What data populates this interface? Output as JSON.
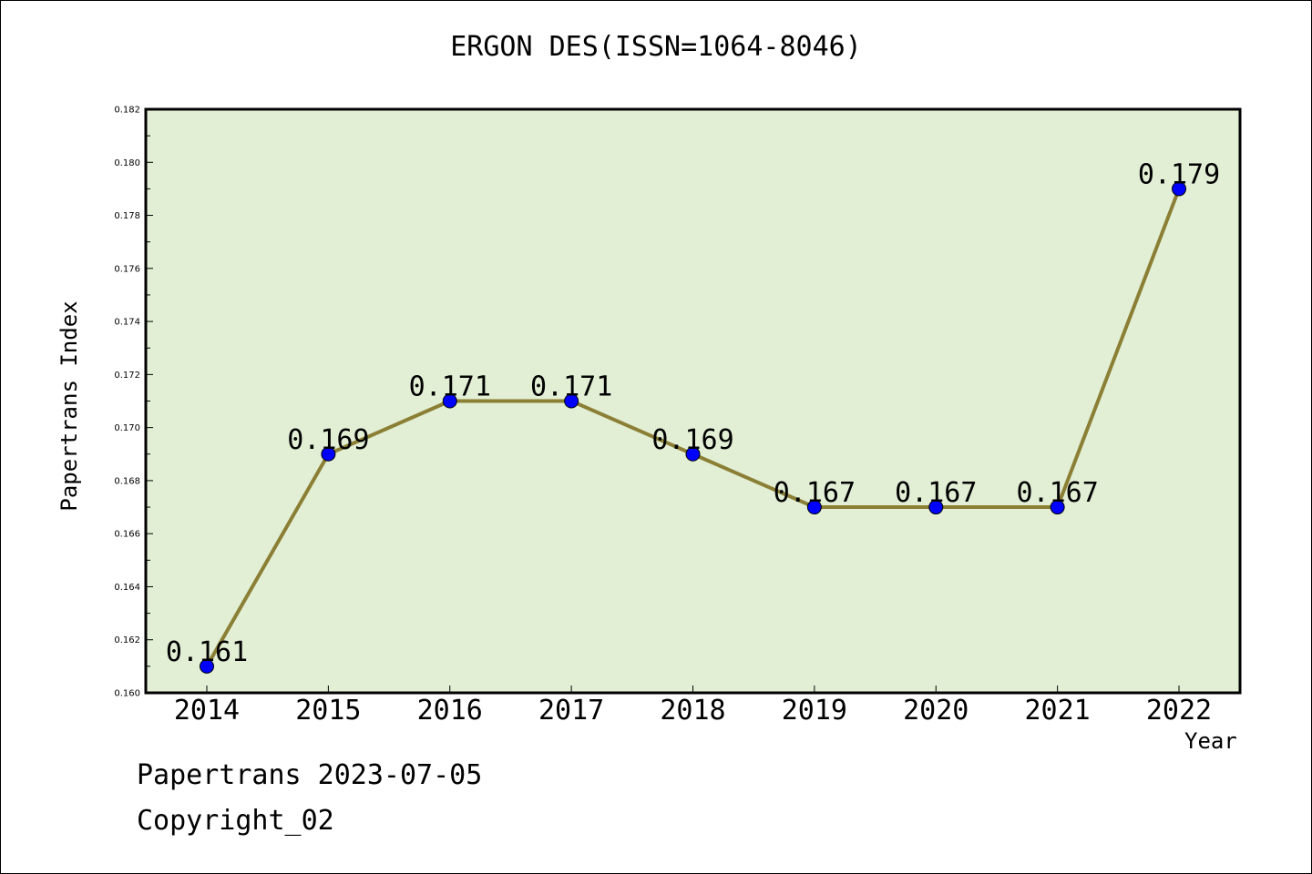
{
  "chart_data": {
    "type": "line",
    "title": "ERGON DES(ISSN=1064-8046)",
    "xlabel": "Year",
    "ylabel": "Papertrans Index",
    "categories": [
      "2014",
      "2015",
      "2016",
      "2017",
      "2018",
      "2019",
      "2020",
      "2021",
      "2022"
    ],
    "values": [
      0.161,
      0.169,
      0.171,
      0.171,
      0.169,
      0.167,
      0.167,
      0.167,
      0.179
    ],
    "data_labels": [
      "0.161",
      "0.169",
      "0.171",
      "0.171",
      "0.169",
      "0.167",
      "0.167",
      "0.167",
      "0.179"
    ],
    "ylim": [
      0.16,
      0.182
    ],
    "yticks": [
      "0.160",
      "0.162",
      "0.164",
      "0.166",
      "0.168",
      "0.170",
      "0.172",
      "0.174",
      "0.176",
      "0.178",
      "0.180",
      "0.182"
    ],
    "grid": false,
    "legend": "none"
  },
  "footer": {
    "date": "Papertrans 2023-07-05",
    "copyright": "Copyright_02"
  },
  "colors": {
    "plot_background": "#e2efd5",
    "line": "#8b7f35",
    "marker": "#0000ff",
    "axis": "#000000"
  }
}
